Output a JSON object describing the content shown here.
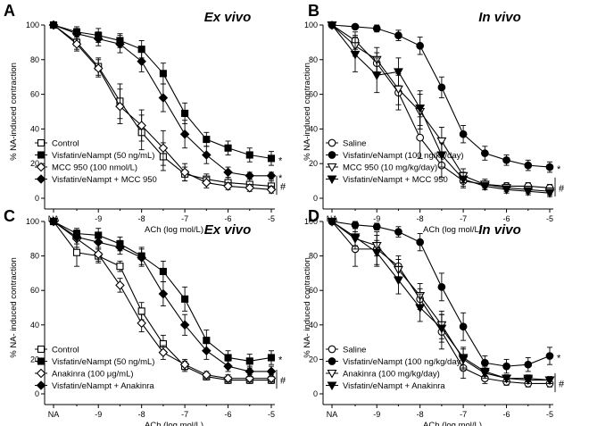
{
  "chart_data": [
    {
      "type": "line",
      "panel_label": "A",
      "title": "Ex vivo",
      "xlabel": "ACh (log mol/L)",
      "ylabel": "% NA-induced contraction",
      "ylim": [
        0,
        100
      ],
      "yticks": [
        "0",
        "20",
        "40",
        "60",
        "80",
        "100"
      ],
      "xticks": [
        "NA",
        "-9",
        "-8",
        "-7",
        "-6",
        "-5"
      ],
      "x": [
        "NA",
        -9.5,
        -9,
        -8.5,
        -8,
        -7.5,
        -7,
        -6.5,
        -6,
        -5.5,
        -5
      ],
      "series": [
        {
          "name": "Control",
          "marker": "square-open",
          "values": [
            100,
            90,
            76,
            56,
            38,
            24,
            14,
            11,
            9,
            8,
            7
          ],
          "err": [
            1,
            4,
            5,
            10,
            10,
            8,
            4,
            3,
            3,
            3,
            3
          ]
        },
        {
          "name": "Visfatin/eNampt  (50 ng/mL)",
          "marker": "square-filled",
          "values": [
            100,
            96,
            94,
            91,
            86,
            72,
            49,
            34,
            29,
            25,
            23
          ],
          "err": [
            1,
            3,
            4,
            4,
            5,
            6,
            6,
            4,
            4,
            4,
            4
          ]
        },
        {
          "name": "MCC 950 (100 nmol/L)",
          "marker": "diamond-open",
          "values": [
            100,
            89,
            75,
            53,
            42,
            29,
            15,
            9,
            7,
            6,
            5
          ],
          "err": [
            1,
            4,
            5,
            10,
            9,
            10,
            5,
            3,
            2,
            2,
            2
          ]
        },
        {
          "name": "Visfatin/eNampt + MCC 950",
          "marker": "diamond-filled",
          "values": [
            100,
            95,
            92,
            89,
            79,
            58,
            37,
            25,
            15,
            13,
            13
          ],
          "err": [
            1,
            3,
            4,
            5,
            6,
            8,
            8,
            5,
            3,
            2,
            2
          ]
        }
      ],
      "annotations": [
        {
          "text": "*",
          "series": "Visfatin/eNampt  (50 ng/mL)"
        },
        {
          "text": "*",
          "series": "Visfatin/eNampt + MCC 950"
        },
        {
          "text": "#",
          "series": "Control"
        }
      ],
      "legend_position": "bottom-left"
    },
    {
      "type": "line",
      "panel_label": "B",
      "title": "In vivo",
      "xlabel": "ACh (log mol/L)",
      "ylabel": "% NA-induced contraction",
      "ylim": [
        0,
        100
      ],
      "yticks": [
        "0",
        "20",
        "40",
        "60",
        "80",
        "100"
      ],
      "xticks": [
        "NA",
        "-9",
        "-8",
        "-7",
        "-6",
        "-5"
      ],
      "x": [
        "NA",
        -9.5,
        -9,
        -8.5,
        -8,
        -7.5,
        -7,
        -6.5,
        -6,
        -5.5,
        -5
      ],
      "series": [
        {
          "name": "Saline",
          "marker": "circle-open",
          "values": [
            100,
            91,
            78,
            61,
            35,
            19,
            10,
            8,
            7,
            7,
            6
          ],
          "err": [
            1,
            5,
            6,
            10,
            12,
            7,
            4,
            2,
            2,
            2,
            2
          ]
        },
        {
          "name": "Visfatin/eNampt (100 ng/kg/day)",
          "marker": "circle-filled",
          "values": [
            100,
            99,
            98,
            94,
            88,
            64,
            37,
            26,
            22,
            19,
            18
          ],
          "err": [
            1,
            1,
            2,
            3,
            5,
            6,
            5,
            4,
            3,
            3,
            3
          ]
        },
        {
          "name": "MCC 950 (10 mg/kg/day)",
          "marker": "triangle-down-open",
          "values": [
            100,
            88,
            80,
            63,
            50,
            33,
            13,
            8,
            6,
            5,
            4
          ],
          "err": [
            1,
            6,
            7,
            9,
            10,
            8,
            4,
            3,
            2,
            2,
            2
          ]
        },
        {
          "name": "Visfatin/eNampt + MCC 950",
          "marker": "triangle-down-filled",
          "values": [
            100,
            83,
            71,
            73,
            52,
            25,
            11,
            7,
            5,
            4,
            3
          ],
          "err": [
            1,
            10,
            10,
            8,
            10,
            7,
            4,
            2,
            2,
            2,
            2
          ]
        }
      ],
      "annotations": [
        {
          "text": "*",
          "series": "Visfatin/eNampt (100 ng/kg/day)"
        },
        {
          "text": "#",
          "series": "Saline"
        }
      ],
      "legend_position": "bottom-left"
    },
    {
      "type": "line",
      "panel_label": "C",
      "title": "Ex vivo",
      "xlabel": "ACh (log mol/L)",
      "ylabel": "% NA- induced contraction",
      "ylim": [
        0,
        100
      ],
      "yticks": [
        "0",
        "20",
        "40",
        "60",
        "80",
        "100"
      ],
      "xticks": [
        "NA",
        "-9",
        "-8",
        "-7",
        "-6",
        "-5"
      ],
      "x": [
        "NA",
        -9.5,
        -9,
        -8.5,
        -8,
        -7.5,
        -7,
        -6.5,
        -6,
        -5.5,
        -5
      ],
      "series": [
        {
          "name": "Control",
          "marker": "square-open",
          "values": [
            100,
            82,
            80,
            74,
            48,
            29,
            16,
            10,
            8,
            8,
            8
          ],
          "err": [
            1,
            8,
            4,
            3,
            5,
            5,
            3,
            2,
            2,
            2,
            2
          ]
        },
        {
          "name": "Visfatin/eNampt (50 ng/mL)",
          "marker": "square-filled",
          "values": [
            100,
            93,
            92,
            87,
            80,
            71,
            55,
            31,
            21,
            19,
            21
          ],
          "err": [
            1,
            3,
            4,
            4,
            5,
            6,
            7,
            6,
            4,
            4,
            4
          ]
        },
        {
          "name": "Anakinra (100 μg/mL)",
          "marker": "diamond-open",
          "values": [
            100,
            90,
            81,
            63,
            41,
            24,
            17,
            11,
            9,
            9,
            9
          ],
          "err": [
            1,
            5,
            4,
            4,
            5,
            4,
            3,
            2,
            2,
            2,
            2
          ]
        },
        {
          "name": "Visfatin/eNampt + Anakinra",
          "marker": "diamond-filled",
          "values": [
            100,
            91,
            88,
            85,
            79,
            58,
            40,
            25,
            16,
            13,
            13
          ],
          "err": [
            1,
            4,
            4,
            4,
            5,
            7,
            6,
            5,
            3,
            3,
            3
          ]
        }
      ],
      "annotations": [
        {
          "text": "*",
          "series": "Visfatin/eNampt (50 ng/mL)"
        },
        {
          "text": "#",
          "series": "Control"
        }
      ],
      "legend_position": "bottom-left"
    },
    {
      "type": "line",
      "panel_label": "D",
      "title": "In vivo",
      "xlabel": "ACh (log mol/L)",
      "ylabel": "% NA- induced contraction",
      "ylim": [
        0,
        100
      ],
      "yticks": [
        "0",
        "20",
        "40",
        "60",
        "80",
        "100"
      ],
      "xticks": [
        "NA",
        "-9",
        "-8",
        "-7",
        "-6",
        "-5"
      ],
      "x": [
        "NA",
        -9.5,
        -9,
        -8.5,
        -8,
        -7.5,
        -7,
        -6.5,
        -6,
        -5.5,
        -5
      ],
      "series": [
        {
          "name": "Saline",
          "marker": "circle-open",
          "values": [
            100,
            84,
            84,
            74,
            55,
            36,
            15,
            9,
            7,
            6,
            6
          ],
          "err": [
            1,
            10,
            10,
            6,
            6,
            10,
            6,
            3,
            2,
            2,
            2
          ]
        },
        {
          "name": "Visfatin/eNampt (100 ng/kg/day)",
          "marker": "circle-filled",
          "values": [
            100,
            98,
            97,
            94,
            88,
            62,
            39,
            18,
            16,
            17,
            22
          ],
          "err": [
            1,
            2,
            2,
            3,
            5,
            8,
            8,
            4,
            4,
            4,
            5
          ]
        },
        {
          "name": "Anakinra (100 mg/kg/day)",
          "marker": "triangle-down-open",
          "values": [
            100,
            90,
            86,
            72,
            57,
            40,
            20,
            12,
            9,
            8,
            8
          ],
          "err": [
            1,
            6,
            6,
            6,
            7,
            8,
            6,
            3,
            2,
            2,
            2
          ]
        },
        {
          "name": "Visfatin/eNampt + Anakinra",
          "marker": "triangle-down-filled",
          "values": [
            100,
            91,
            82,
            66,
            50,
            38,
            21,
            13,
            9,
            9,
            8
          ],
          "err": [
            1,
            5,
            7,
            8,
            8,
            8,
            6,
            3,
            2,
            2,
            2
          ]
        }
      ],
      "annotations": [
        {
          "text": "*",
          "series": "Visfatin/eNampt (100 ng/kg/day)"
        },
        {
          "text": "#",
          "series": "Saline"
        }
      ],
      "legend_position": "bottom-left"
    }
  ]
}
